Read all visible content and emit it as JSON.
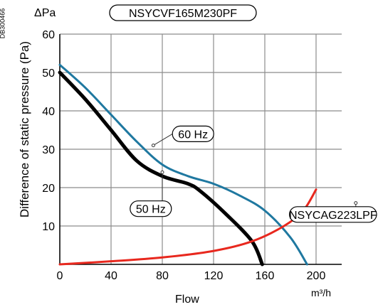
{
  "doc_id": "DB300466",
  "chart_data": {
    "type": "line",
    "title": "NSYCVF165M230PF",
    "ylabel": "Difference of static pressure (Pa)",
    "ylabel_unit": "ΔPa",
    "xlabel": "Flow",
    "xlabel_unit": "m³/h",
    "xlim": [
      0,
      220
    ],
    "ylim": [
      0,
      60
    ],
    "x_ticks": [
      0,
      40,
      80,
      120,
      160,
      200
    ],
    "y_ticks": [
      10,
      20,
      30,
      40,
      50,
      60
    ],
    "grid": true,
    "series": [
      {
        "name": "60 Hz",
        "color": "#1f78a0",
        "label_at": [
          104,
          34
        ],
        "arrow_to": [
          73,
          31
        ],
        "points": [
          [
            0,
            52
          ],
          [
            20,
            46
          ],
          [
            40,
            39
          ],
          [
            60,
            32
          ],
          [
            80,
            26
          ],
          [
            100,
            23
          ],
          [
            120,
            21
          ],
          [
            140,
            18
          ],
          [
            160,
            14
          ],
          [
            180,
            7
          ],
          [
            193,
            0
          ]
        ]
      },
      {
        "name": "50 Hz",
        "color": "#000000",
        "label_at": [
          71,
          14.5
        ],
        "arrow_to": [
          80,
          24
        ],
        "points": [
          [
            0,
            50
          ],
          [
            20,
            43
          ],
          [
            40,
            35
          ],
          [
            60,
            27
          ],
          [
            80,
            23
          ],
          [
            100,
            21
          ],
          [
            110,
            19
          ],
          [
            130,
            13
          ],
          [
            150,
            6
          ],
          [
            158,
            0
          ]
        ]
      },
      {
        "name": "NSYCAG223LPF",
        "color": "#e8281e",
        "label_at": [
          220,
          13
        ],
        "arrow_to": [
          231,
          16
        ],
        "points": [
          [
            0,
            0
          ],
          [
            40,
            0.8
          ],
          [
            80,
            1.8
          ],
          [
            120,
            3.5
          ],
          [
            150,
            6
          ],
          [
            175,
            10
          ],
          [
            190,
            14
          ],
          [
            200,
            19.5
          ]
        ]
      }
    ]
  }
}
